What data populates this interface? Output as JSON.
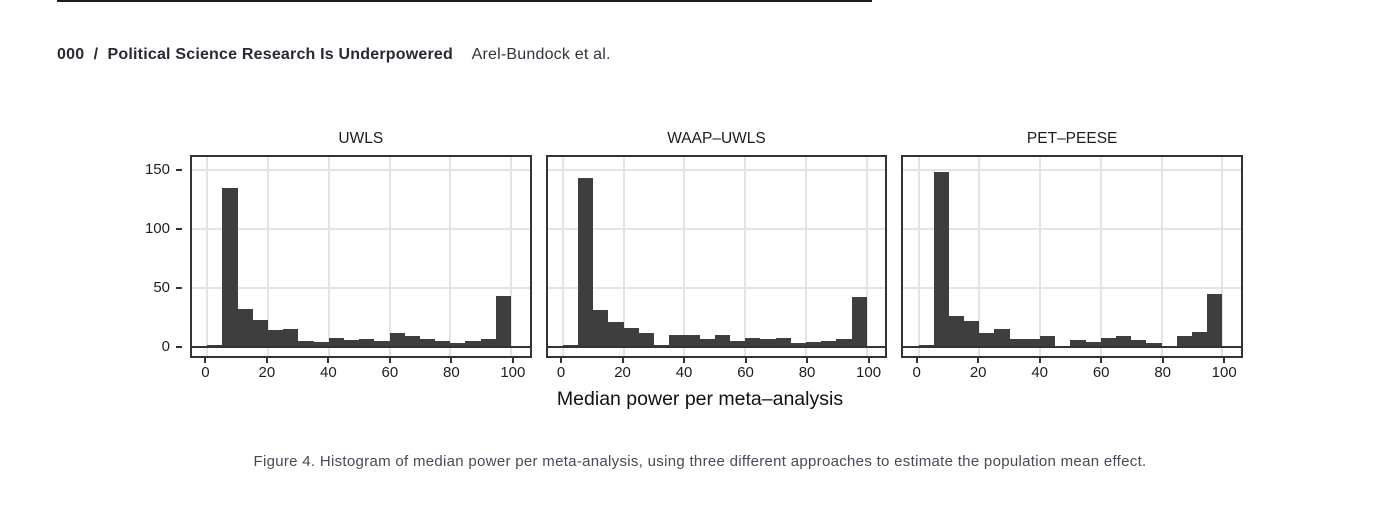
{
  "header": {
    "folio": "000",
    "separator": "/",
    "title": "Political Science Research Is Underpowered",
    "authors": "Arel-Bundock et al."
  },
  "figure": {
    "x_axis_title": "Median power per meta–analysis",
    "caption": "Figure 4. Histogram of median power per meta-analysis, using three different approaches to estimate the population mean effect.",
    "y_ticks": [
      0,
      50,
      100,
      150
    ],
    "x_ticks": [
      0,
      20,
      40,
      60,
      80,
      100
    ]
  },
  "chart_data": [
    {
      "type": "bar",
      "subtype": "histogram",
      "title": "UWLS",
      "xlabel": "Median power per meta–analysis",
      "ylabel": "",
      "xlim": [
        0,
        100
      ],
      "ylim": [
        0,
        155
      ],
      "grid": true,
      "bin_edges": [
        0,
        5,
        10,
        15,
        20,
        25,
        30,
        35,
        40,
        45,
        50,
        55,
        60,
        65,
        70,
        75,
        80,
        85,
        90,
        95,
        100
      ],
      "values": [
        2,
        135,
        32,
        23,
        14,
        15,
        5,
        4,
        8,
        6,
        7,
        5,
        12,
        9,
        7,
        5,
        3,
        5,
        7,
        43
      ]
    },
    {
      "type": "bar",
      "subtype": "histogram",
      "title": "WAAP–UWLS",
      "xlabel": "Median power per meta–analysis",
      "ylabel": "",
      "xlim": [
        0,
        100
      ],
      "ylim": [
        0,
        155
      ],
      "grid": true,
      "bin_edges": [
        0,
        5,
        10,
        15,
        20,
        25,
        30,
        35,
        40,
        45,
        50,
        55,
        60,
        65,
        70,
        75,
        80,
        85,
        90,
        95,
        100
      ],
      "values": [
        2,
        143,
        31,
        21,
        16,
        12,
        2,
        10,
        10,
        7,
        10,
        5,
        8,
        7,
        8,
        3,
        4,
        5,
        7,
        42
      ]
    },
    {
      "type": "bar",
      "subtype": "histogram",
      "title": "PET–PEESE",
      "xlabel": "Median power per meta–analysis",
      "ylabel": "",
      "xlim": [
        0,
        100
      ],
      "ylim": [
        0,
        155
      ],
      "grid": true,
      "bin_edges": [
        0,
        5,
        10,
        15,
        20,
        25,
        30,
        35,
        40,
        45,
        50,
        55,
        60,
        65,
        70,
        75,
        80,
        85,
        90,
        95,
        100
      ],
      "values": [
        2,
        148,
        26,
        22,
        12,
        15,
        7,
        7,
        9,
        1,
        6,
        4,
        8,
        9,
        6,
        3,
        1,
        9,
        13,
        45
      ]
    }
  ],
  "colors": {
    "bar_fill": "#3e3e3e",
    "panel_border": "#333333",
    "gridline": "#e4e4e4",
    "baseline": "#333333",
    "plot_text": "#1f1f1f",
    "header_text": "#262a33",
    "caption_text": "#454b57"
  }
}
